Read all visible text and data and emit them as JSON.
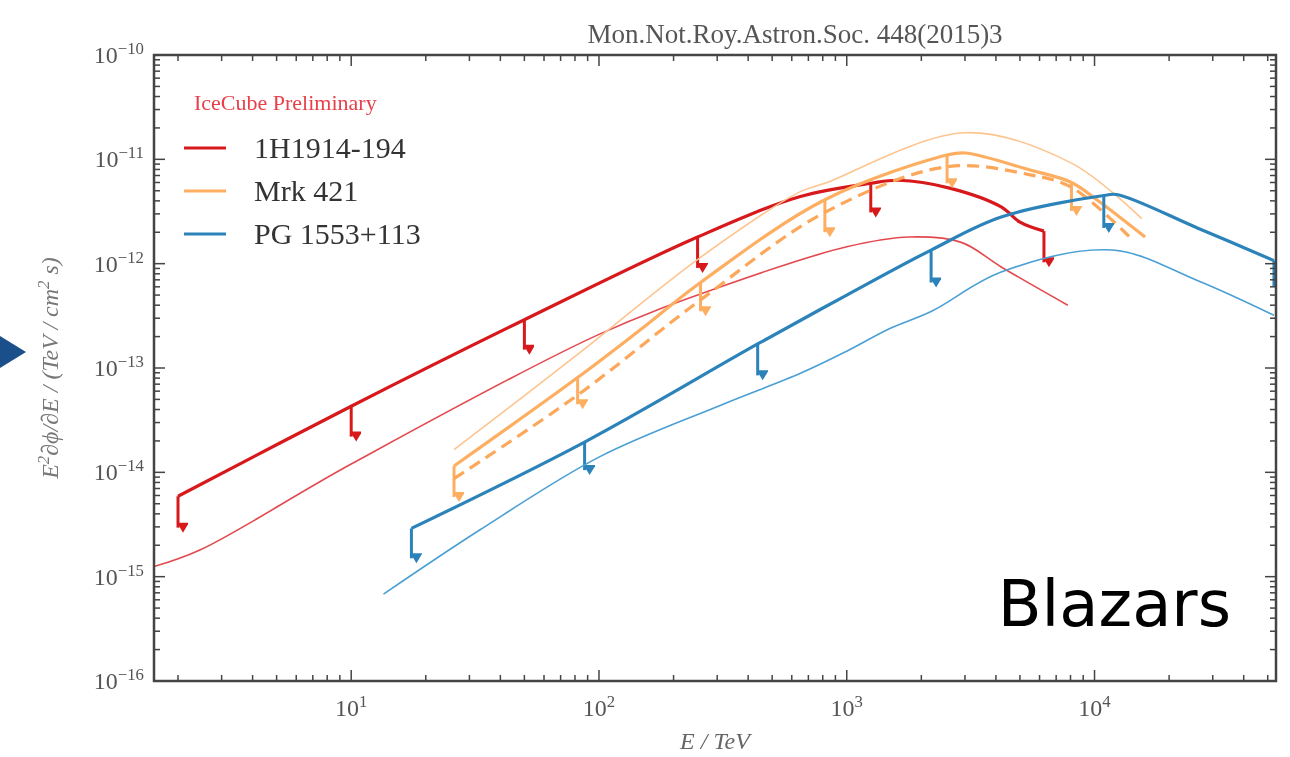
{
  "chart_data": {
    "type": "line",
    "title": "Mon.Not.Roy.Astron.Soc.  448(2015)3",
    "xlabel": "E / TeV",
    "ylabel": "E$^{2}$∂ϕ/∂E / (TeV / cm$^{2}$ s)",
    "legend_title": "IceCube Preliminary",
    "legend": "top left",
    "log": "xy",
    "grid": false,
    "marker": "none",
    "annotations": [
      "Blazars"
    ],
    "xlim": [
      1.6,
      54000
    ],
    "ylim": [
      1e-16,
      1e-10
    ],
    "xticks": [
      {
        "value": 2,
        "label": null
      },
      {
        "value": 3,
        "label": null
      },
      {
        "value": 4,
        "label": null
      },
      {
        "value": 5,
        "label": null
      },
      {
        "value": 6,
        "label": null
      },
      {
        "value": 7,
        "label": null
      },
      {
        "value": 8,
        "label": null
      },
      {
        "value": 9,
        "label": null
      },
      {
        "value": 10,
        "label": "10$^{1}$"
      },
      {
        "value": 20,
        "label": null
      },
      {
        "value": 30,
        "label": null
      },
      {
        "value": 40,
        "label": null
      },
      {
        "value": 50,
        "label": null
      },
      {
        "value": 60,
        "label": null
      },
      {
        "value": 70,
        "label": null
      },
      {
        "value": 80,
        "label": null
      },
      {
        "value": 90,
        "label": null
      },
      {
        "value": 100,
        "label": "10$^{2}$"
      },
      {
        "value": 200,
        "label": null
      },
      {
        "value": 300,
        "label": null
      },
      {
        "value": 400,
        "label": null
      },
      {
        "value": 500,
        "label": null
      },
      {
        "value": 600,
        "label": null
      },
      {
        "value": 700,
        "label": null
      },
      {
        "value": 800,
        "label": null
      },
      {
        "value": 900,
        "label": null
      },
      {
        "value": 1000,
        "label": "10$^{3}$"
      },
      {
        "value": 2000,
        "label": null
      },
      {
        "value": 3000,
        "label": null
      },
      {
        "value": 4000,
        "label": null
      },
      {
        "value": 5000,
        "label": null
      },
      {
        "value": 6000,
        "label": null
      },
      {
        "value": 7000,
        "label": null
      },
      {
        "value": 8000,
        "label": null
      },
      {
        "value": 9000,
        "label": null
      },
      {
        "value": 10000,
        "label": "10$^{4}$"
      },
      {
        "value": 20000,
        "label": null
      },
      {
        "value": 30000,
        "label": null
      },
      {
        "value": 40000,
        "label": null
      },
      {
        "value": 50000,
        "label": null
      }
    ],
    "yticks": [
      {
        "value": 1e-16,
        "label": "10$^{−16}$"
      },
      {
        "value": 2e-16,
        "label": null
      },
      {
        "value": 3e-16,
        "label": null
      },
      {
        "value": 4e-16,
        "label": null
      },
      {
        "value": 5e-16,
        "label": null
      },
      {
        "value": 6e-16,
        "label": null
      },
      {
        "value": 7e-16,
        "label": null
      },
      {
        "value": 8e-16,
        "label": null
      },
      {
        "value": 9e-16,
        "label": null
      },
      {
        "value": 1e-15,
        "label": "10$^{−15}$"
      },
      {
        "value": 2e-15,
        "label": null
      },
      {
        "value": 3e-15,
        "label": null
      },
      {
        "value": 4e-15,
        "label": null
      },
      {
        "value": 5e-15,
        "label": null
      },
      {
        "value": 6e-15,
        "label": null
      },
      {
        "value": 7e-15,
        "label": null
      },
      {
        "value": 8e-15,
        "label": null
      },
      {
        "value": 9e-15,
        "label": null
      },
      {
        "value": 1e-14,
        "label": "10$^{−14}$"
      },
      {
        "value": 2e-14,
        "label": null
      },
      {
        "value": 3e-14,
        "label": null
      },
      {
        "value": 4e-14,
        "label": null
      },
      {
        "value": 5e-14,
        "label": null
      },
      {
        "value": 6e-14,
        "label": null
      },
      {
        "value": 7e-14,
        "label": null
      },
      {
        "value": 8e-14,
        "label": null
      },
      {
        "value": 9e-14,
        "label": null
      },
      {
        "value": 1e-13,
        "label": "10$^{−13}$"
      },
      {
        "value": 2e-13,
        "label": null
      },
      {
        "value": 3e-13,
        "label": null
      },
      {
        "value": 4e-13,
        "label": null
      },
      {
        "value": 5e-13,
        "label": null
      },
      {
        "value": 6e-13,
        "label": null
      },
      {
        "value": 7e-13,
        "label": null
      },
      {
        "value": 8e-13,
        "label": null
      },
      {
        "value": 9e-13,
        "label": null
      },
      {
        "value": 1e-12,
        "label": "10$^{−12}$"
      },
      {
        "value": 2e-12,
        "label": null
      },
      {
        "value": 3e-12,
        "label": null
      },
      {
        "value": 4e-12,
        "label": null
      },
      {
        "value": 5e-12,
        "label": null
      },
      {
        "value": 6e-12,
        "label": null
      },
      {
        "value": 7e-12,
        "label": null
      },
      {
        "value": 8e-12,
        "label": null
      },
      {
        "value": 9e-12,
        "label": null
      },
      {
        "value": 1e-11,
        "label": "10$^{−11}$"
      },
      {
        "value": 2e-11,
        "label": null
      },
      {
        "value": 3e-11,
        "label": null
      },
      {
        "value": 4e-11,
        "label": null
      },
      {
        "value": 5e-11,
        "label": null
      },
      {
        "value": 6e-11,
        "label": null
      },
      {
        "value": 7e-11,
        "label": null
      },
      {
        "value": 8e-11,
        "label": null
      },
      {
        "value": 9e-11,
        "label": null
      },
      {
        "value": 1e-10,
        "label": "10$^{−10}$"
      }
    ],
    "series": [
      {
        "name": "1H1914-194",
        "color": "#d7191c",
        "line_style": "solid",
        "x": [
          2,
          10,
          50,
          250,
          650,
          1250,
          1620,
          2600,
          4200,
          5000,
          6250
        ],
        "values": [
          5.9e-15,
          4.3e-14,
          2.9e-13,
          1.8e-12,
          4.4e-12,
          5.9e-12,
          6.3e-12,
          5.3e-12,
          3.5e-12,
          2.5e-12,
          2.05e-12
        ],
        "errors": [
          [
            2.95e-15,
            5.9e-15
          ],
          [
            2.2e-14,
            4.3e-14
          ],
          [
            1.5e-13,
            2.9e-13
          ],
          [
            9.1e-13,
            1.8e-12
          ],
          null,
          [
            3.1e-12,
            5.9e-12
          ],
          null,
          null,
          null,
          null,
          [
            1.03e-12,
            2.05e-12
          ]
        ]
      },
      {
        "color": "#e34a50",
        "line_style": "solid",
        "x": [
          1.6,
          2.45,
          10,
          100,
          310,
          1000,
          1790,
          2900,
          4200,
          7800
        ],
        "values": [
          1.25e-15,
          1.8e-15,
          1.2e-14,
          2.1e-13,
          6e-13,
          1.45e-12,
          1.8e-12,
          1.6e-12,
          9.3e-13,
          4e-13
        ]
      },
      {
        "name": "Mrk 421",
        "color": "#fdae61",
        "line_style": "solid",
        "x": [
          26,
          82,
          146,
          257,
          816,
          2540,
          3000,
          5500,
          8070,
          10500,
          16000
        ],
        "values": [
          1.15e-14,
          8.1e-14,
          2.3e-13,
          6.6e-13,
          4.1e-12,
          1.1e-11,
          1.15e-11,
          7.9e-12,
          6e-12,
          3.9e-12,
          1.8e-12
        ],
        "errors": [
          [
            5.8e-15,
            1.15e-14
          ],
          [
            4.5e-14,
            8.1e-14
          ],
          null,
          [
            3.5e-13,
            6.6e-13
          ],
          [
            2e-12,
            4.1e-12
          ],
          [
            5.9e-12,
            1.1e-11
          ],
          null,
          null,
          [
            3.2e-12,
            6e-12
          ],
          null,
          null
        ]
      },
      {
        "color": "#fca75a",
        "line_style": "dashed",
        "x": [
          26,
          82,
          257,
          816,
          2540,
          5500,
          8070,
          14000
        ],
        "values": [
          8.7e-15,
          5.5e-14,
          4.5e-13,
          3.1e-12,
          8.5e-12,
          7.1e-12,
          5.4e-12,
          1.76e-12
        ]
      },
      {
        "color": "#fec48f",
        "line_style": "solid",
        "x": [
          26,
          82,
          257,
          650,
          816,
          3000,
          8070,
          15500
        ],
        "values": [
          1.65e-14,
          1.35e-13,
          1.15e-12,
          4.9e-12,
          5.9e-12,
          1.8e-11,
          9.2e-12,
          2.7e-12
        ]
      },
      {
        "name": "PG 1553+113",
        "color": "#2b83ba",
        "line_style": "solid",
        "x": [
          17.5,
          87.5,
          437,
          1000,
          2190,
          4200,
          10900,
          12300,
          26000,
          53000
        ],
        "values": [
          2.9e-15,
          1.95e-14,
          1.7e-13,
          5e-13,
          1.35e-12,
          2.8e-12,
          4.5e-12,
          4.6e-12,
          2.2e-12,
          1.07e-12
        ],
        "errors": [
          [
            1.5e-15,
            2.9e-15
          ],
          [
            1.05e-14,
            1.95e-14
          ],
          [
            8.5e-14,
            1.7e-13
          ],
          null,
          [
            6.6e-13,
            1.35e-12
          ],
          null,
          [
            2.2e-12,
            4.5e-12
          ],
          null,
          null,
          [
            6e-13,
            1.07e-12
          ]
        ]
      },
      {
        "color": "#4a9fd4",
        "line_style": "solid",
        "x": [
          13.5,
          33,
          100,
          310,
          650,
          1000,
          1500,
          2200,
          4200,
          11800,
          26000,
          53000
        ],
        "values": [
          6.8e-16,
          2.8e-15,
          1.4e-14,
          4.4e-14,
          8.9e-14,
          1.45e-13,
          2.4e-13,
          3.5e-13,
          8.3e-13,
          1.35e-12,
          6.9e-13,
          3.2e-13
        ]
      }
    ]
  }
}
